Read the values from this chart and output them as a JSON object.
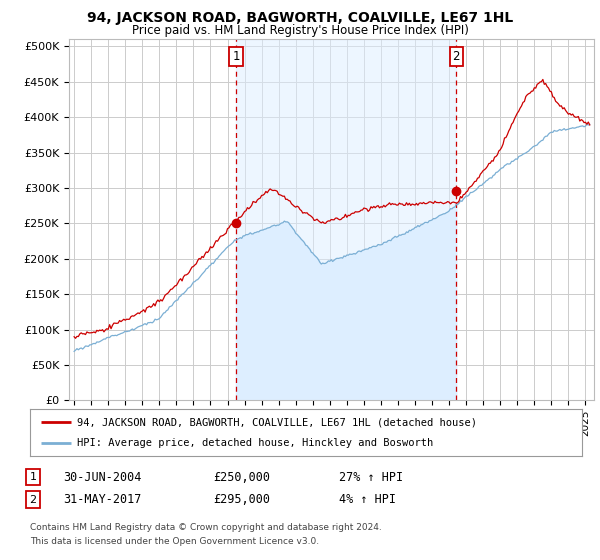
{
  "title": "94, JACKSON ROAD, BAGWORTH, COALVILLE, LE67 1HL",
  "subtitle": "Price paid vs. HM Land Registry's House Price Index (HPI)",
  "red_label": "94, JACKSON ROAD, BAGWORTH, COALVILLE, LE67 1HL (detached house)",
  "blue_label": "HPI: Average price, detached house, Hinckley and Bosworth",
  "annotation1": {
    "num": "1",
    "date": "30-JUN-2004",
    "price": "£250,000",
    "hpi": "27% ↑ HPI",
    "x_year": 2004.5
  },
  "annotation2": {
    "num": "2",
    "date": "31-MAY-2017",
    "price": "£295,000",
    "hpi": "4% ↑ HPI",
    "x_year": 2017.417
  },
  "footer1": "Contains HM Land Registry data © Crown copyright and database right 2024.",
  "footer2": "This data is licensed under the Open Government Licence v3.0.",
  "ylim": [
    0,
    510000
  ],
  "yticks": [
    0,
    50000,
    100000,
    150000,
    200000,
    250000,
    300000,
    350000,
    400000,
    450000,
    500000
  ],
  "ytick_labels": [
    "£0",
    "£50K",
    "£100K",
    "£150K",
    "£200K",
    "£250K",
    "£300K",
    "£350K",
    "£400K",
    "£450K",
    "£500K"
  ],
  "xlim_start": 1994.7,
  "xlim_end": 2025.5,
  "red_color": "#cc0000",
  "blue_color": "#7bafd4",
  "fill_color": "#ddeeff",
  "vline_color": "#cc0000",
  "grid_color": "#cccccc",
  "background_color": "#ffffff",
  "sale1_x": 2004.5,
  "sale1_y": 250000,
  "sale2_x": 2017.417,
  "sale2_y": 295000
}
